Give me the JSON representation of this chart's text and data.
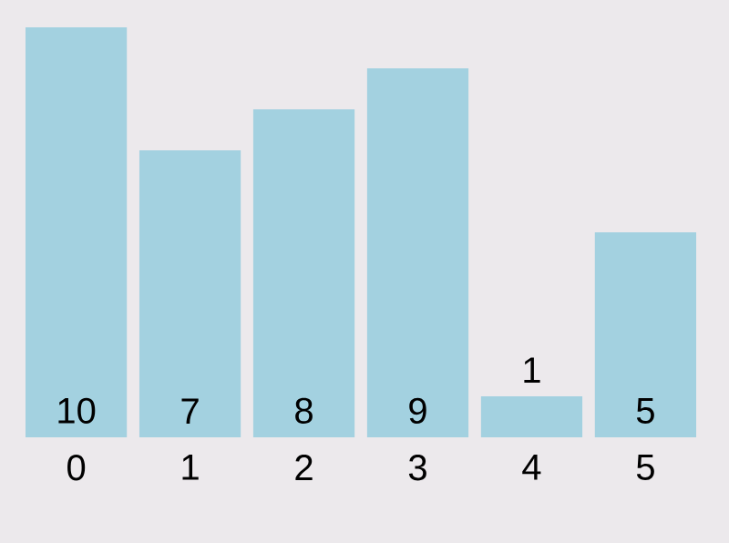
{
  "chart_data": {
    "type": "bar",
    "categories": [
      "0",
      "1",
      "2",
      "3",
      "4",
      "5"
    ],
    "values": [
      10,
      7,
      8,
      9,
      1,
      5
    ],
    "color": "#a3d1e0",
    "data_labels": true
  }
}
